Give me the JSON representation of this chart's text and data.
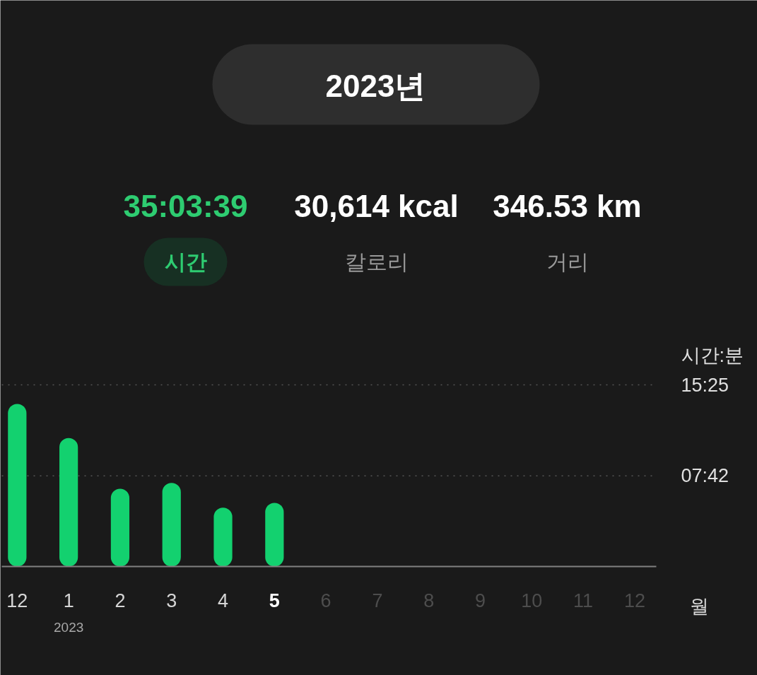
{
  "chart_data": {
    "type": "bar",
    "title": "2023년",
    "xlabel": "월",
    "ylabel": "시간:분",
    "categories": [
      "12",
      "1",
      "2",
      "3",
      "4",
      "5",
      "6",
      "7",
      "8",
      "9",
      "10",
      "11",
      "12"
    ],
    "values": [
      13.8,
      10.9,
      6.6,
      7.1,
      5.0,
      5.4,
      null,
      null,
      null,
      null,
      null,
      null,
      null
    ],
    "color": "#13d16f",
    "ylim": [
      0,
      15.4167
    ],
    "yticks": [
      {
        "value": 7.7,
        "label": "07:42"
      },
      {
        "value": 15.4167,
        "label": "15:25"
      }
    ],
    "grid": "y",
    "annotations": [
      "35:03:39",
      "30,614 kcal",
      "346.53 km",
      "시간",
      "칼로리",
      "거리",
      "2023"
    ]
  }
}
